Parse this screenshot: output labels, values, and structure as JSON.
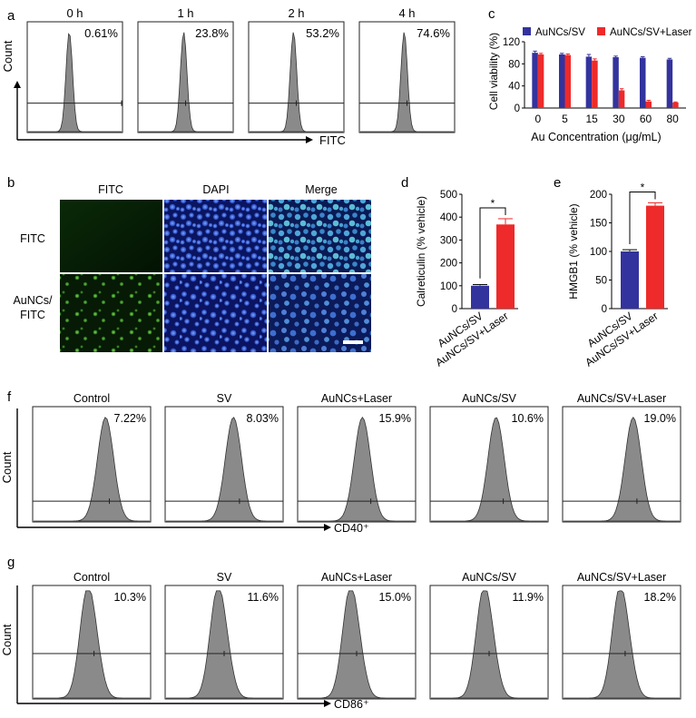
{
  "panel_letters": [
    "a",
    "b",
    "c",
    "d",
    "e",
    "f",
    "g"
  ],
  "panel_a": {
    "ylabel": "Count",
    "xlabel": "FITC",
    "plots": [
      {
        "time": "0 h",
        "pct": "0.61%"
      },
      {
        "time": "1 h",
        "pct": "23.8%"
      },
      {
        "time": "2 h",
        "pct": "53.2%"
      },
      {
        "time": "4 h",
        "pct": "74.6%"
      }
    ]
  },
  "panel_b": {
    "columns": [
      "FITC",
      "DAPI",
      "Merge"
    ],
    "rows": [
      "FITC",
      "AuNCs/\nFITC"
    ]
  },
  "panel_f": {
    "ylabel": "Count",
    "xlabel": "CD40⁺",
    "plots": [
      {
        "group": "Control",
        "pct": "7.22%"
      },
      {
        "group": "SV",
        "pct": "8.03%"
      },
      {
        "group": "AuNCs+Laser",
        "pct": "15.9%"
      },
      {
        "group": "AuNCs/SV",
        "pct": "10.6%"
      },
      {
        "group": "AuNCs/SV+Laser",
        "pct": "19.0%"
      }
    ]
  },
  "panel_g": {
    "ylabel": "Count",
    "xlabel": "CD86⁺",
    "plots": [
      {
        "group": "Control",
        "pct": "10.3%"
      },
      {
        "group": "SV",
        "pct": "11.6%"
      },
      {
        "group": "AuNCs+Laser",
        "pct": "15.0%"
      },
      {
        "group": "AuNCs/SV",
        "pct": "11.9%"
      },
      {
        "group": "AuNCs/SV+Laser",
        "pct": "18.2%"
      }
    ]
  },
  "colors": {
    "blue": "#33339e",
    "red": "#ee2a2a",
    "hist_fill": "#8a8a8a"
  },
  "chart_data": [
    {
      "id": "c",
      "type": "bar",
      "title": "",
      "xlabel": "Au Concentration (μg/mL)",
      "ylabel": "Cell viability (%)",
      "categories": [
        "0",
        "5",
        "15",
        "30",
        "60",
        "80"
      ],
      "ylim": [
        0,
        120
      ],
      "yticks": [
        0,
        40,
        80,
        120
      ],
      "legend": "top",
      "series": [
        {
          "name": "AuNCs/SV",
          "values": [
            100,
            97,
            93,
            92,
            91,
            88
          ],
          "errors": [
            3,
            2,
            4,
            2,
            2,
            2
          ]
        },
        {
          "name": "AuNCs/SV+Laser",
          "values": [
            97,
            96,
            86,
            32,
            12,
            10
          ],
          "errors": [
            2,
            2,
            3,
            3,
            2,
            1
          ]
        }
      ]
    },
    {
      "id": "d",
      "type": "bar",
      "title": "",
      "xlabel": "",
      "ylabel": "Calreticulin (% vehicle)",
      "categories": [
        "AuNCs/SV",
        "AuNCs/SV+Laser"
      ],
      "values": [
        100,
        368
      ],
      "errors": [
        5,
        25
      ],
      "ylim": [
        0,
        500
      ],
      "yticks": [
        0,
        100,
        200,
        300,
        400,
        500
      ],
      "annotation": "*"
    },
    {
      "id": "e",
      "type": "bar",
      "title": "",
      "xlabel": "",
      "ylabel": "HMGB1 (% vehicle)",
      "categories": [
        "AuNCs/SV",
        "AuNCs/SV+Laser"
      ],
      "values": [
        100,
        180
      ],
      "errors": [
        3,
        5
      ],
      "ylim": [
        0,
        200
      ],
      "yticks": [
        0,
        50,
        100,
        150,
        200
      ],
      "annotation": "*"
    }
  ]
}
